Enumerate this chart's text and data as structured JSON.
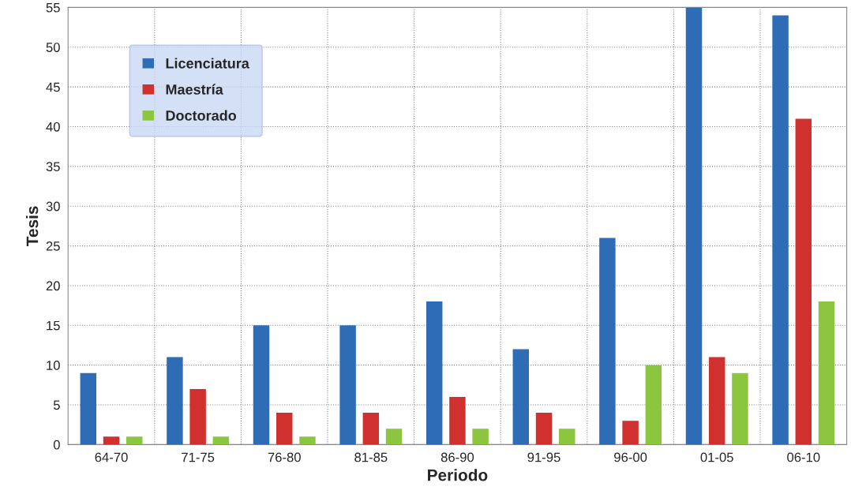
{
  "chart_data": {
    "type": "bar",
    "xlabel": "Periodo",
    "ylabel": "Tesis",
    "categories": [
      "64-70",
      "71-75",
      "76-80",
      "81-85",
      "86-90",
      "91-95",
      "96-00",
      "01-05",
      "06-10"
    ],
    "series": [
      {
        "name": "Licenciatura",
        "color": "#2e6db5",
        "values": [
          9,
          11,
          15,
          15,
          18,
          12,
          26,
          55,
          54
        ]
      },
      {
        "name": "Maestría",
        "color": "#d0302e",
        "values": [
          1,
          7,
          4,
          4,
          6,
          4,
          3,
          11,
          41
        ]
      },
      {
        "name": "Doctorado",
        "color": "#8cc63f",
        "values": [
          1,
          1,
          1,
          2,
          2,
          2,
          10,
          9,
          18
        ]
      }
    ],
    "ylim": [
      0,
      55
    ],
    "yticks": [
      0,
      5,
      10,
      15,
      20,
      25,
      30,
      35,
      40,
      45,
      50,
      55
    ],
    "grid": true,
    "legend": "top left"
  }
}
